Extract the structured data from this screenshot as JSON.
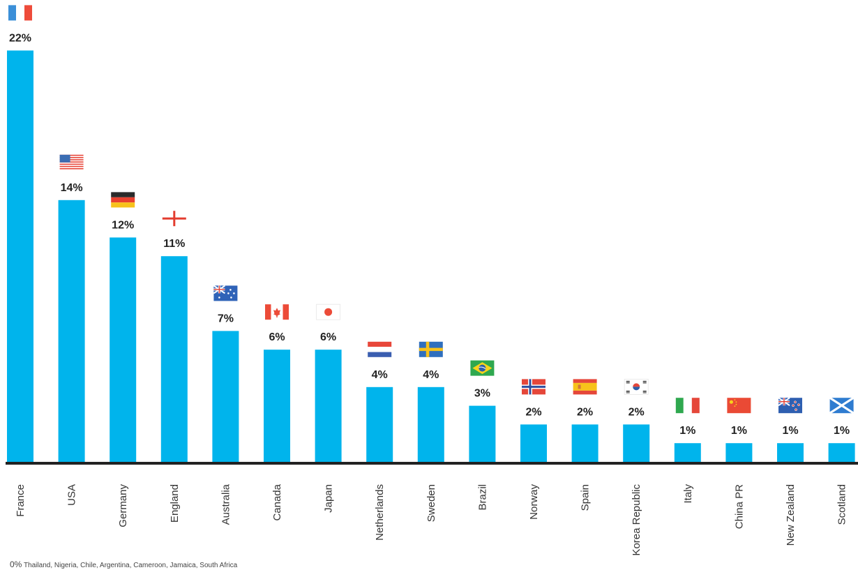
{
  "chart_data": {
    "type": "bar",
    "categories": [
      "France",
      "USA",
      "Germany",
      "England",
      "Australia",
      "Canada",
      "Japan",
      "Netherlands",
      "Sweden",
      "Brazil",
      "Norway",
      "Spain",
      "Korea Republic",
      "Italy",
      "China PR",
      "New Zealand",
      "Scotland"
    ],
    "values": [
      22,
      14,
      12,
      11,
      7,
      6,
      6,
      4,
      4,
      3,
      2,
      2,
      2,
      1,
      1,
      1,
      1
    ],
    "value_labels": [
      "22%",
      "14%",
      "12%",
      "11%",
      "7%",
      "6%",
      "6%",
      "4%",
      "4%",
      "3%",
      "2%",
      "2%",
      "2%",
      "1%",
      "1%",
      "1%",
      "1%"
    ],
    "flags": [
      "france-flag",
      "usa-flag",
      "germany-flag",
      "england-flag",
      "australia-flag",
      "canada-flag",
      "japan-flag",
      "netherlands-flag",
      "sweden-flag",
      "brazil-flag",
      "norway-flag",
      "spain-flag",
      "korea-republic-flag",
      "italy-flag",
      "china-pr-flag",
      "new-zealand-flag",
      "scotland-flag"
    ],
    "bar_color": "#00b4ec",
    "baseline_color": "#222222",
    "footnote": {
      "value": "0%",
      "countries": "Thailand, Nigeria, Chile, Argentina, Cameroon, Jamaica, South Africa"
    }
  }
}
